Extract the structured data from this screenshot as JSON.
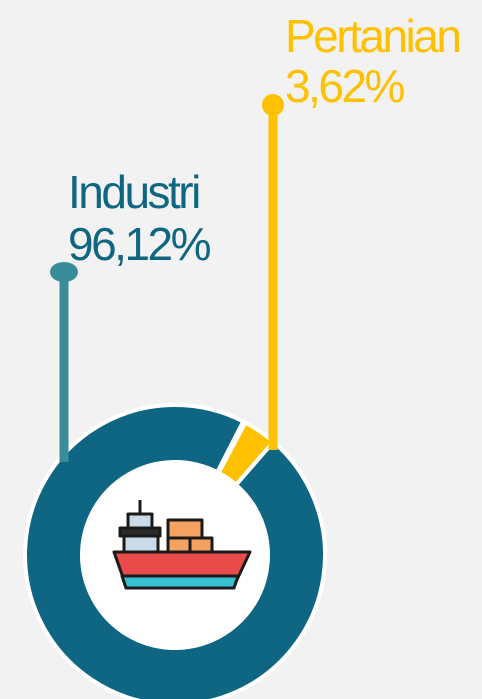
{
  "chart_data": {
    "type": "donut",
    "categories": [
      "Industri",
      "Pertanian"
    ],
    "values": [
      96.12,
      3.62
    ],
    "value_labels": [
      "96,12%",
      "3,62%"
    ],
    "colors": [
      "#0e6682",
      "#ffc000"
    ]
  }
}
